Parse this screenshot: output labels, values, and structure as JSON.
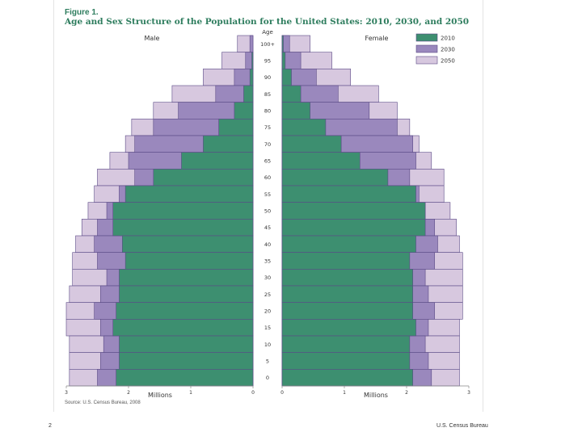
{
  "figure": {
    "label": "Figure 1.",
    "title": "Age and Sex Structure of the Population for the United States: 2010, 2030, and 2050",
    "source": "Source: U.S. Census Bureau, 2008"
  },
  "footer": {
    "page_number": "2",
    "publisher": "U.S. Census Bureau"
  },
  "colors": {
    "y2010": "#3d8f70",
    "y2030": "#9a88bd",
    "y2050": "#d7c8df",
    "line": "#5a4a86"
  },
  "chart_data": {
    "type": "bar",
    "subtype": "population-pyramid",
    "title": "Age and Sex Structure of the Population for the United States: 2010, 2030, and 2050",
    "panels": [
      "Male",
      "Female"
    ],
    "axis_title_age": "Age",
    "xlabel": "Millions",
    "xlim": [
      0,
      3
    ],
    "male_ticks": [
      "3",
      "2",
      "1",
      "0"
    ],
    "female_ticks": [
      "0",
      "1",
      "2",
      "3"
    ],
    "age_labels": [
      "100+",
      "95",
      "90",
      "85",
      "80",
      "75",
      "70",
      "65",
      "60",
      "55",
      "50",
      "45",
      "40",
      "35",
      "30",
      "25",
      "20",
      "15",
      "10",
      "5",
      "0"
    ],
    "age_groups": [
      "100+",
      "95-99",
      "90-94",
      "85-89",
      "80-84",
      "75-79",
      "70-74",
      "65-69",
      "60-64",
      "55-59",
      "50-54",
      "45-49",
      "40-44",
      "35-39",
      "30-34",
      "25-29",
      "20-24",
      "15-19",
      "10-14",
      "5-9",
      "0-4"
    ],
    "legend": [
      "2010",
      "2030",
      "2050"
    ],
    "series": [
      {
        "name": "2010",
        "male": [
          0.0,
          0.02,
          0.05,
          0.15,
          0.3,
          0.55,
          0.8,
          1.15,
          1.6,
          2.05,
          2.25,
          2.25,
          2.1,
          2.05,
          2.15,
          2.15,
          2.2,
          2.25,
          2.15,
          2.15,
          2.2
        ],
        "female": [
          0.02,
          0.05,
          0.15,
          0.3,
          0.45,
          0.7,
          0.95,
          1.25,
          1.7,
          2.15,
          2.3,
          2.3,
          2.15,
          2.05,
          2.1,
          2.1,
          2.1,
          2.15,
          2.05,
          2.05,
          2.1
        ]
      },
      {
        "name": "2030",
        "male": [
          0.05,
          0.12,
          0.3,
          0.6,
          1.2,
          1.6,
          1.9,
          2.0,
          1.9,
          2.15,
          2.35,
          2.5,
          2.55,
          2.5,
          2.35,
          2.45,
          2.55,
          2.45,
          2.4,
          2.45,
          2.5
        ],
        "female": [
          0.12,
          0.3,
          0.55,
          0.9,
          1.4,
          1.85,
          2.1,
          2.15,
          2.05,
          2.2,
          2.3,
          2.45,
          2.5,
          2.45,
          2.3,
          2.35,
          2.45,
          2.35,
          2.3,
          2.35,
          2.4
        ]
      },
      {
        "name": "2050",
        "male": [
          0.25,
          0.5,
          0.8,
          1.3,
          1.6,
          1.95,
          2.05,
          2.3,
          2.5,
          2.55,
          2.65,
          2.75,
          2.85,
          2.9,
          2.9,
          2.95,
          3.0,
          3.0,
          2.95,
          2.95,
          2.95
        ],
        "female": [
          0.45,
          0.8,
          1.1,
          1.55,
          1.85,
          2.05,
          2.2,
          2.4,
          2.6,
          2.6,
          2.7,
          2.8,
          2.85,
          2.9,
          2.9,
          2.9,
          2.9,
          2.85,
          2.85,
          2.85,
          2.85
        ]
      }
    ]
  }
}
